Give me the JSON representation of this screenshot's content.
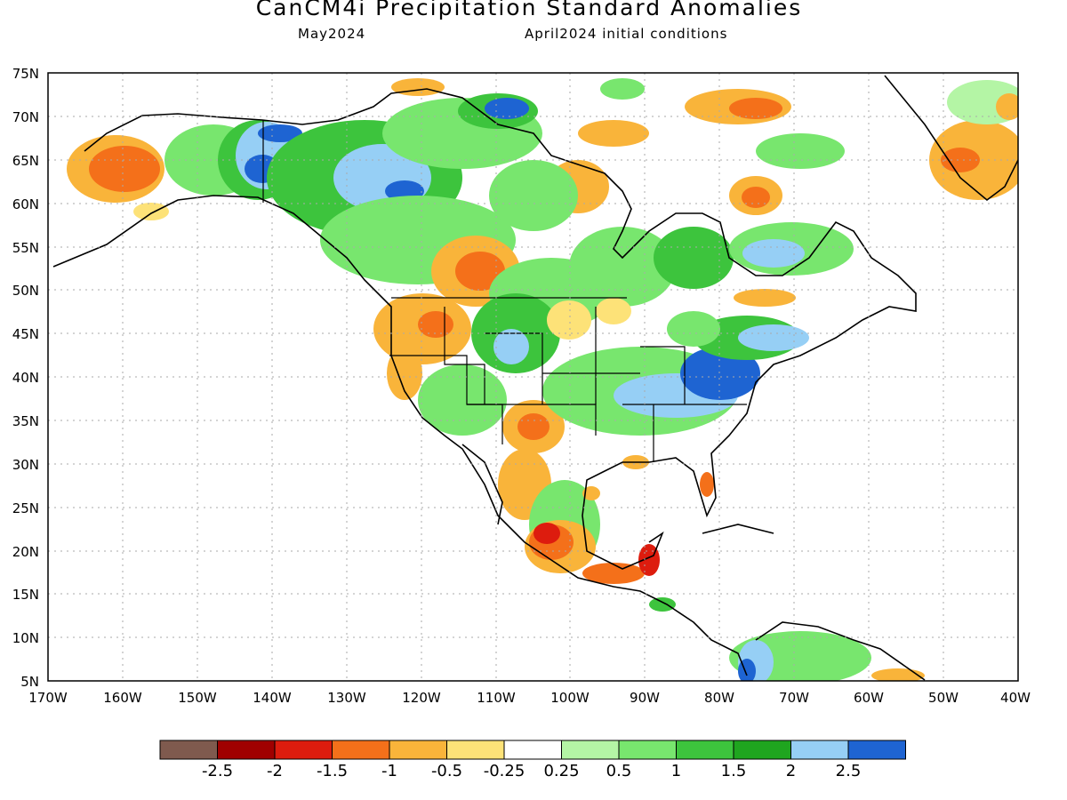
{
  "title": "CanCM4i Precipitation Standard Anomalies",
  "subtitle_left": "May2024",
  "subtitle_right": "April2024 initial conditions",
  "lat_labels": [
    "75N",
    "70N",
    "65N",
    "60N",
    "55N",
    "50N",
    "45N",
    "40N",
    "35N",
    "30N",
    "25N",
    "20N",
    "15N",
    "10N",
    "5N"
  ],
  "lon_labels": [
    "170W",
    "160W",
    "150W",
    "140W",
    "130W",
    "120W",
    "110W",
    "100W",
    "90W",
    "80W",
    "70W",
    "60W",
    "50W",
    "40W"
  ],
  "map": {
    "lat_range": [
      5,
      75
    ],
    "lon_range": [
      -170,
      -40
    ],
    "grid": "dotted"
  },
  "legend": {
    "colors": [
      "#7f5a4e",
      "#a00000",
      "#dd1c0e",
      "#f4701a",
      "#f9b43a",
      "#fde278",
      "#ffffff",
      "#b4f5a5",
      "#78e66e",
      "#3dc43d",
      "#1fa51f",
      "#96cff5",
      "#1e64d2"
    ],
    "labels": [
      "-2.5",
      "-2",
      "-1.5",
      "-1",
      "-0.5",
      "-0.25",
      "0.25",
      "0.5",
      "1",
      "1.5",
      "2",
      "2.5"
    ]
  },
  "colors": {
    "land_outline": "#000000",
    "background": "#ffffff"
  }
}
